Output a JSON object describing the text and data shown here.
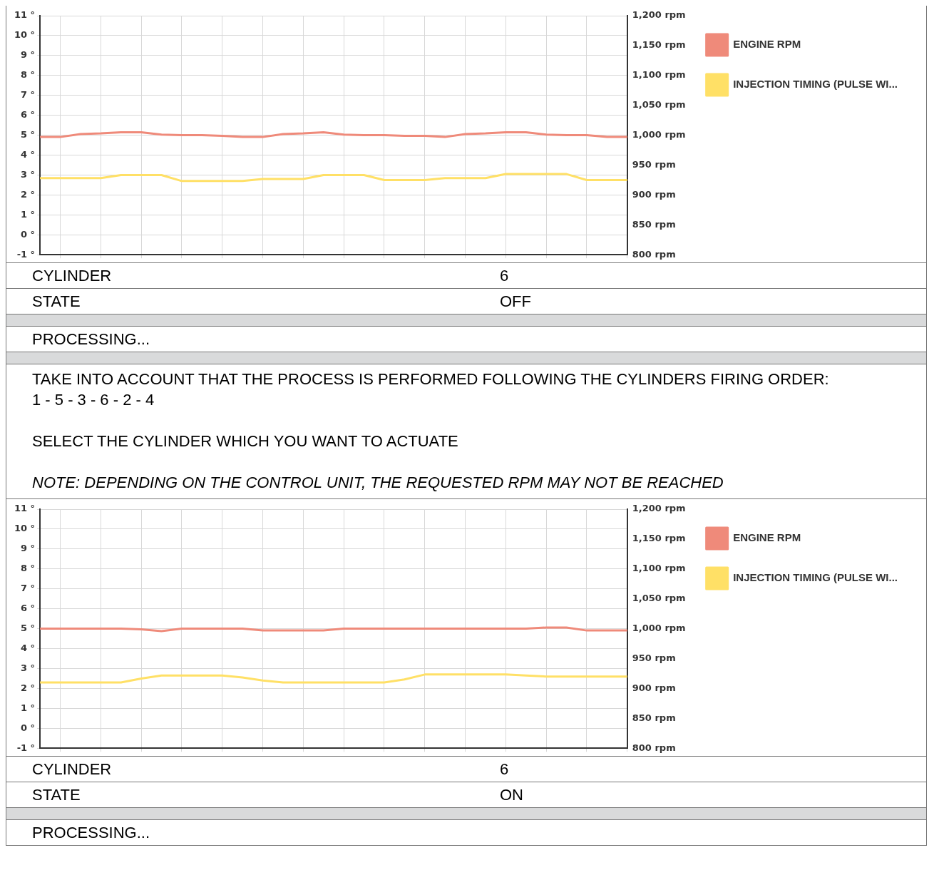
{
  "chart_data": [
    {
      "type": "line",
      "ylim": [
        -1,
        11
      ],
      "yticks": [
        {
          "value": -1,
          "label": "-1 °"
        },
        {
          "value": 0,
          "label": "0 °"
        },
        {
          "value": 1,
          "label": "1 °"
        },
        {
          "value": 2,
          "label": "2 °"
        },
        {
          "value": 3,
          "label": "3 °"
        },
        {
          "value": 4,
          "label": "4 °"
        },
        {
          "value": 5,
          "label": "5 °"
        },
        {
          "value": 6,
          "label": "6 °"
        },
        {
          "value": 7,
          "label": "7 °"
        },
        {
          "value": 8,
          "label": "8 °"
        },
        {
          "value": 9,
          "label": "9 °"
        },
        {
          "value": 10,
          "label": "10 °"
        },
        {
          "value": 11,
          "label": "11 °"
        }
      ],
      "y2lim": [
        800,
        1200
      ],
      "y2ticks": [
        {
          "value": 800,
          "label": "800 rpm"
        },
        {
          "value": 850,
          "label": "850 rpm"
        },
        {
          "value": 900,
          "label": "900 rpm"
        },
        {
          "value": 950,
          "label": "950 rpm"
        },
        {
          "value": 1000,
          "label": "1,000 rpm"
        },
        {
          "value": 1050,
          "label": "1,050 rpm"
        },
        {
          "value": 1100,
          "label": "1,100 rpm"
        },
        {
          "value": 1150,
          "label": "1,150 rpm"
        },
        {
          "value": 1200,
          "label": "1,200 rpm"
        }
      ],
      "grid": true,
      "legend": "top right",
      "tick_labels": "y",
      "marker": "none",
      "categories": [
        null,
        null,
        null,
        null,
        null,
        null,
        null,
        null,
        null,
        null,
        null,
        null,
        null,
        null,
        null,
        null,
        null,
        null,
        null,
        null,
        null,
        null,
        null,
        null,
        null,
        null,
        null,
        null,
        null,
        null
      ],
      "series": [
        {
          "name": "ENGINE RPM",
          "color": "#ef8a7a",
          "axis": "y2",
          "values": [
            997,
            997,
            1002,
            1003,
            1005,
            1005,
            1001,
            1000,
            1000,
            999,
            997,
            997,
            1002,
            1003,
            1005,
            1001,
            1000,
            1000,
            999,
            999,
            997,
            1002,
            1003,
            1005,
            1005,
            1001,
            1000,
            1000,
            997,
            997
          ]
        },
        {
          "name": "INJECTION TIMING (PULSE WI...",
          "color": "#ffe066",
          "values": [
            2.85,
            2.85,
            2.85,
            2.85,
            3.0,
            3.0,
            3.0,
            2.7,
            2.7,
            2.7,
            2.7,
            2.8,
            2.8,
            2.8,
            3.0,
            3.0,
            3.0,
            2.75,
            2.75,
            2.75,
            2.85,
            2.85,
            2.85,
            3.05,
            3.05,
            3.05,
            3.05,
            2.75,
            2.75,
            2.75
          ]
        }
      ]
    },
    {
      "type": "other",
      "categories": [
        "CYLINDER",
        "STATE"
      ],
      "value_labels": [
        "6",
        "OFF"
      ],
      "annotations": [
        "PROCESSING...",
        "TAKE INTO ACCOUNT THAT THE PROCESS IS PERFORMED FOLLOWING THE CYLINDERS FIRING ORDER:",
        "1 - 5 - 3 - 6 - 2 - 4",
        "SELECT THE CYLINDER WHICH YOU WANT TO ACTUATE",
        "NOTE: DEPENDING ON THE CONTROL UNIT, THE REQUESTED RPM MAY NOT BE REACHED"
      ]
    },
    {
      "type": "line",
      "ylim": [
        -1,
        11
      ],
      "yticks": [
        {
          "value": -1,
          "label": "-1 °"
        },
        {
          "value": 0,
          "label": "0 °"
        },
        {
          "value": 1,
          "label": "1 °"
        },
        {
          "value": 2,
          "label": "2 °"
        },
        {
          "value": 3,
          "label": "3 °"
        },
        {
          "value": 4,
          "label": "4 °"
        },
        {
          "value": 5,
          "label": "5 °"
        },
        {
          "value": 6,
          "label": "6 °"
        },
        {
          "value": 7,
          "label": "7 °"
        },
        {
          "value": 8,
          "label": "8 °"
        },
        {
          "value": 9,
          "label": "9 °"
        },
        {
          "value": 10,
          "label": "10 °"
        },
        {
          "value": 11,
          "label": "11 °"
        }
      ],
      "y2lim": [
        800,
        1200
      ],
      "y2ticks": [
        {
          "value": 800,
          "label": "800 rpm"
        },
        {
          "value": 850,
          "label": "850 rpm"
        },
        {
          "value": 900,
          "label": "900 rpm"
        },
        {
          "value": 950,
          "label": "950 rpm"
        },
        {
          "value": 1000,
          "label": "1,000 rpm"
        },
        {
          "value": 1050,
          "label": "1,050 rpm"
        },
        {
          "value": 1100,
          "label": "1,100 rpm"
        },
        {
          "value": 1150,
          "label": "1,150 rpm"
        },
        {
          "value": 1200,
          "label": "1,200 rpm"
        }
      ],
      "grid": true,
      "legend": "top right",
      "tick_labels": "y",
      "marker": "none",
      "categories": [
        null,
        null,
        null,
        null,
        null,
        null,
        null,
        null,
        null,
        null,
        null,
        null,
        null,
        null,
        null,
        null,
        null,
        null,
        null,
        null,
        null,
        null,
        null,
        null,
        null,
        null,
        null,
        null,
        null,
        null
      ],
      "series": [
        {
          "name": "ENGINE RPM",
          "color": "#ef8a7a",
          "axis": "y2",
          "values": [
            1000,
            1000,
            1000,
            1000,
            1000,
            999,
            996,
            1000,
            1000,
            1000,
            1000,
            997,
            997,
            997,
            997,
            1000,
            1000,
            1000,
            1000,
            1000,
            1000,
            1000,
            1000,
            1000,
            1000,
            1002,
            1002,
            997,
            997,
            997
          ]
        },
        {
          "name": "INJECTION TIMING (PULSE WI...",
          "color": "#ffe066",
          "values": [
            2.3,
            2.3,
            2.3,
            2.3,
            2.3,
            2.5,
            2.65,
            2.65,
            2.65,
            2.65,
            2.55,
            2.4,
            2.3,
            2.3,
            2.3,
            2.3,
            2.3,
            2.3,
            2.45,
            2.7,
            2.7,
            2.7,
            2.7,
            2.7,
            2.65,
            2.6,
            2.6,
            2.6,
            2.6,
            2.6
          ]
        }
      ]
    },
    {
      "type": "other",
      "categories": [
        "CYLINDER",
        "STATE"
      ],
      "value_labels": [
        "6",
        "ON"
      ],
      "annotations": [
        "PROCESSING..."
      ]
    }
  ]
}
